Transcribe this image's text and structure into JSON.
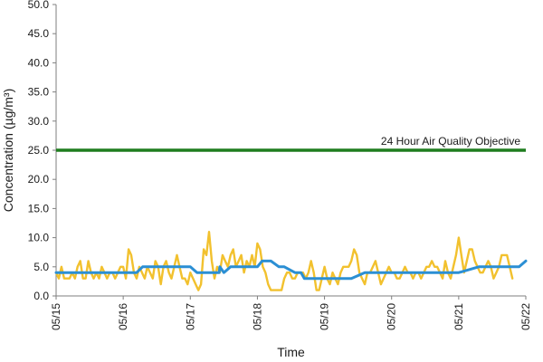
{
  "chart_data": {
    "type": "line",
    "xlabel": "Time",
    "ylabel": "Concentration (µg/m³)",
    "ylim": [
      0,
      50
    ],
    "yticks": [
      "0.0",
      "5.0",
      "10.0",
      "15.0",
      "20.0",
      "25.0",
      "30.0",
      "35.0",
      "40.0",
      "45.0",
      "50.0"
    ],
    "x_tick_labels": [
      "05/15",
      "05/16",
      "05/17",
      "05/18",
      "05/19",
      "05/20",
      "05/21",
      "05/22"
    ],
    "grid": false,
    "legend": "none",
    "reference_line": {
      "label": "24 Hour Air Quality Objective",
      "value": 25.0,
      "color": "#1e7d1e"
    },
    "series": [
      {
        "color": "#f2c12e",
        "x_days_from_0515": [
          0.0,
          0.04,
          0.08,
          0.12,
          0.16,
          0.2,
          0.24,
          0.28,
          0.32,
          0.36,
          0.4,
          0.44,
          0.48,
          0.52,
          0.56,
          0.6,
          0.64,
          0.68,
          0.72,
          0.76,
          0.8,
          0.84,
          0.88,
          0.92,
          0.96,
          1.0,
          1.04,
          1.08,
          1.12,
          1.16,
          1.2,
          1.24,
          1.28,
          1.32,
          1.36,
          1.4,
          1.44,
          1.48,
          1.52,
          1.56,
          1.6,
          1.64,
          1.68,
          1.72,
          1.76,
          1.8,
          1.84,
          1.88,
          1.92,
          1.96,
          2.0,
          2.04,
          2.08,
          2.12,
          2.16,
          2.2,
          2.24,
          2.28,
          2.32,
          2.36,
          2.4,
          2.44,
          2.48,
          2.52,
          2.56,
          2.6,
          2.64,
          2.68,
          2.72,
          2.76,
          2.8,
          2.84,
          2.88,
          2.92,
          2.96,
          3.0,
          3.04,
          3.08,
          3.12,
          3.16,
          3.2,
          3.24,
          3.28,
          3.32,
          3.36,
          3.4,
          3.44,
          3.48,
          3.52,
          3.56,
          3.6,
          3.64,
          3.68,
          3.72,
          3.76,
          3.8,
          3.84,
          3.88,
          3.92,
          3.96,
          4.0,
          4.04,
          4.08,
          4.12,
          4.16,
          4.2,
          4.24,
          4.28,
          4.32,
          4.36,
          4.4,
          4.44,
          4.48,
          4.52,
          4.56,
          4.6,
          4.64,
          4.68,
          4.72,
          4.76,
          4.8,
          4.84,
          4.88,
          4.92,
          4.96,
          5.0,
          5.04,
          5.08,
          5.12,
          5.16,
          5.2,
          5.24,
          5.28,
          5.32,
          5.36,
          5.4,
          5.44,
          5.48,
          5.52,
          5.56,
          5.6,
          5.64,
          5.68,
          5.72,
          5.76,
          5.8,
          5.84,
          5.88,
          5.92,
          5.96,
          6.0,
          6.04,
          6.08,
          6.12,
          6.16,
          6.2,
          6.24,
          6.28,
          6.32,
          6.36,
          6.4,
          6.44,
          6.48,
          6.52,
          6.56,
          6.6,
          6.64,
          6.68,
          6.72,
          6.76,
          6.8,
          6.84,
          6.88,
          6.92,
          6.96,
          7.0
        ],
        "values": [
          4,
          3,
          5,
          3,
          3,
          3,
          4,
          3,
          5,
          6,
          3,
          3,
          6,
          4,
          3,
          4,
          3,
          5,
          4,
          3,
          4,
          4,
          3,
          4,
          5,
          5,
          3,
          8,
          7,
          4,
          3,
          5,
          4,
          3,
          5,
          4,
          3,
          6,
          5,
          2,
          5,
          6,
          4,
          3,
          5,
          7,
          5,
          3,
          3,
          2,
          4,
          3,
          2,
          1,
          2,
          8,
          7,
          11,
          6,
          3,
          5,
          4,
          7,
          6,
          5,
          7,
          8,
          5,
          6,
          7,
          4,
          6,
          5,
          7,
          5,
          9,
          8,
          5,
          4,
          2,
          1,
          1,
          1,
          1,
          1,
          3,
          4,
          4,
          3,
          3,
          4,
          4,
          4,
          3,
          4,
          6,
          4,
          1,
          1,
          3,
          5,
          3,
          2,
          4,
          3,
          2,
          4,
          5,
          5,
          5,
          6,
          8,
          7,
          4,
          3,
          2,
          4,
          4,
          5,
          6,
          4,
          2,
          3,
          4,
          5,
          4,
          4,
          3,
          3,
          4,
          5,
          4,
          4,
          3,
          4,
          4,
          3,
          4,
          5,
          5,
          6,
          5,
          5,
          4,
          3,
          6,
          4,
          3,
          5,
          7,
          10,
          7,
          4,
          6,
          8,
          8,
          6,
          5,
          4,
          4,
          5,
          6,
          5,
          3,
          4,
          5,
          7,
          7,
          7,
          5,
          3
        ]
      },
      {
        "color": "#2b8fd4",
        "x_days_from_0515": [
          0.0,
          0.3,
          0.6,
          0.9,
          1.2,
          1.29,
          1.4,
          2.0,
          2.1,
          2.2,
          2.43,
          2.44,
          2.5,
          2.6,
          2.8,
          3.0,
          3.07,
          3.2,
          3.32,
          3.4,
          3.56,
          3.65,
          3.7,
          4.0,
          4.2,
          4.4,
          4.6,
          4.8,
          5.0,
          5.1,
          5.4,
          5.8,
          6.0,
          6.3,
          6.5,
          6.9,
          7.0
        ],
        "values": [
          4,
          4,
          4,
          4,
          4,
          5,
          5,
          5,
          4,
          4,
          4,
          5,
          4,
          5,
          5,
          5,
          6,
          6,
          5,
          5,
          4,
          4,
          3,
          3,
          3,
          3,
          4,
          4,
          4,
          4,
          4,
          4,
          4,
          5,
          5,
          5,
          6
        ]
      }
    ]
  }
}
